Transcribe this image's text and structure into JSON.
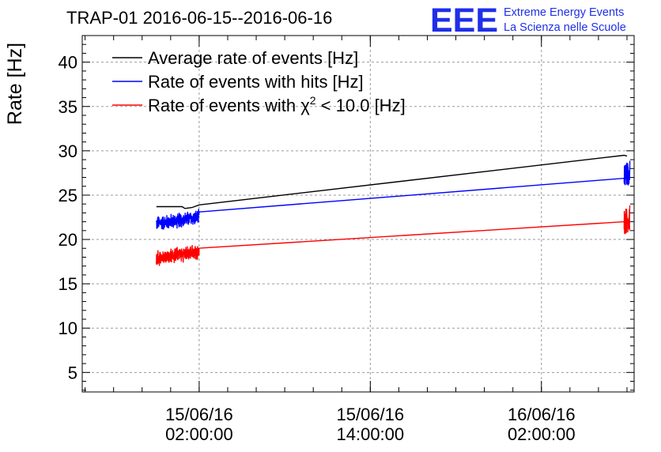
{
  "chart_data": {
    "type": "line",
    "title": "TRAP-01 2016-06-15--2016-06-16",
    "ylabel": "Rate [Hz]",
    "xlabel": "",
    "ylim": [
      2.8,
      43
    ],
    "yticks": [
      5,
      10,
      15,
      20,
      25,
      30,
      35,
      40
    ],
    "x_unit": "hours since 2016-06-15 00:00:00",
    "xlim": [
      -6.2,
      32.5
    ],
    "xticks": [
      {
        "value": 2,
        "date": "15/06/16",
        "time": "02:00:00"
      },
      {
        "value": 14,
        "date": "15/06/16",
        "time": "14:00:00"
      },
      {
        "value": 26,
        "date": "16/06/16",
        "time": "02:00:00"
      }
    ],
    "grid": true,
    "legend_position": "top-left",
    "series": [
      {
        "name": "Average rate of events [Hz]",
        "color": "#000000",
        "noise": 0,
        "x": [
          -1.0,
          0.8,
          1.0,
          1.5,
          2.0,
          31.8,
          32.0
        ],
        "y": [
          23.7,
          23.7,
          23.5,
          23.6,
          23.9,
          29.5,
          29.4
        ]
      },
      {
        "name": "Rate of events with hits [Hz]",
        "color": "#0000ff",
        "noise": 1.0,
        "noise_spans": [
          [
            -1.0,
            2.0
          ],
          [
            31.8,
            32.2
          ]
        ],
        "x": [
          -1.0,
          2.0,
          31.8,
          32.2
        ],
        "y": [
          21.8,
          22.5,
          26.9,
          27.6
        ]
      },
      {
        "name": "Rate of events with χ² < 10.0 [Hz]",
        "color": "#ff0000",
        "noise": 1.0,
        "noise_spans": [
          [
            -1.0,
            2.0
          ],
          [
            31.8,
            32.2
          ]
        ],
        "x": [
          -1.0,
          2.0,
          31.8,
          32.2
        ],
        "y": [
          17.9,
          18.6,
          22.0,
          22.4
        ]
      }
    ],
    "legend_entries": [
      {
        "prefix": "Average rate of events [Hz]",
        "sup": "",
        "suffix": ""
      },
      {
        "prefix": "Rate of events with hits [Hz]",
        "sup": "",
        "suffix": ""
      },
      {
        "prefix": "Rate of events with χ",
        "sup": "2",
        "suffix": " < 10.0 [Hz]"
      }
    ]
  },
  "logo": {
    "mark": "EEE",
    "line1": "Extreme Energy Events",
    "line2": "La Scienza nelle Scuole",
    "color": "#1f2fe8"
  }
}
